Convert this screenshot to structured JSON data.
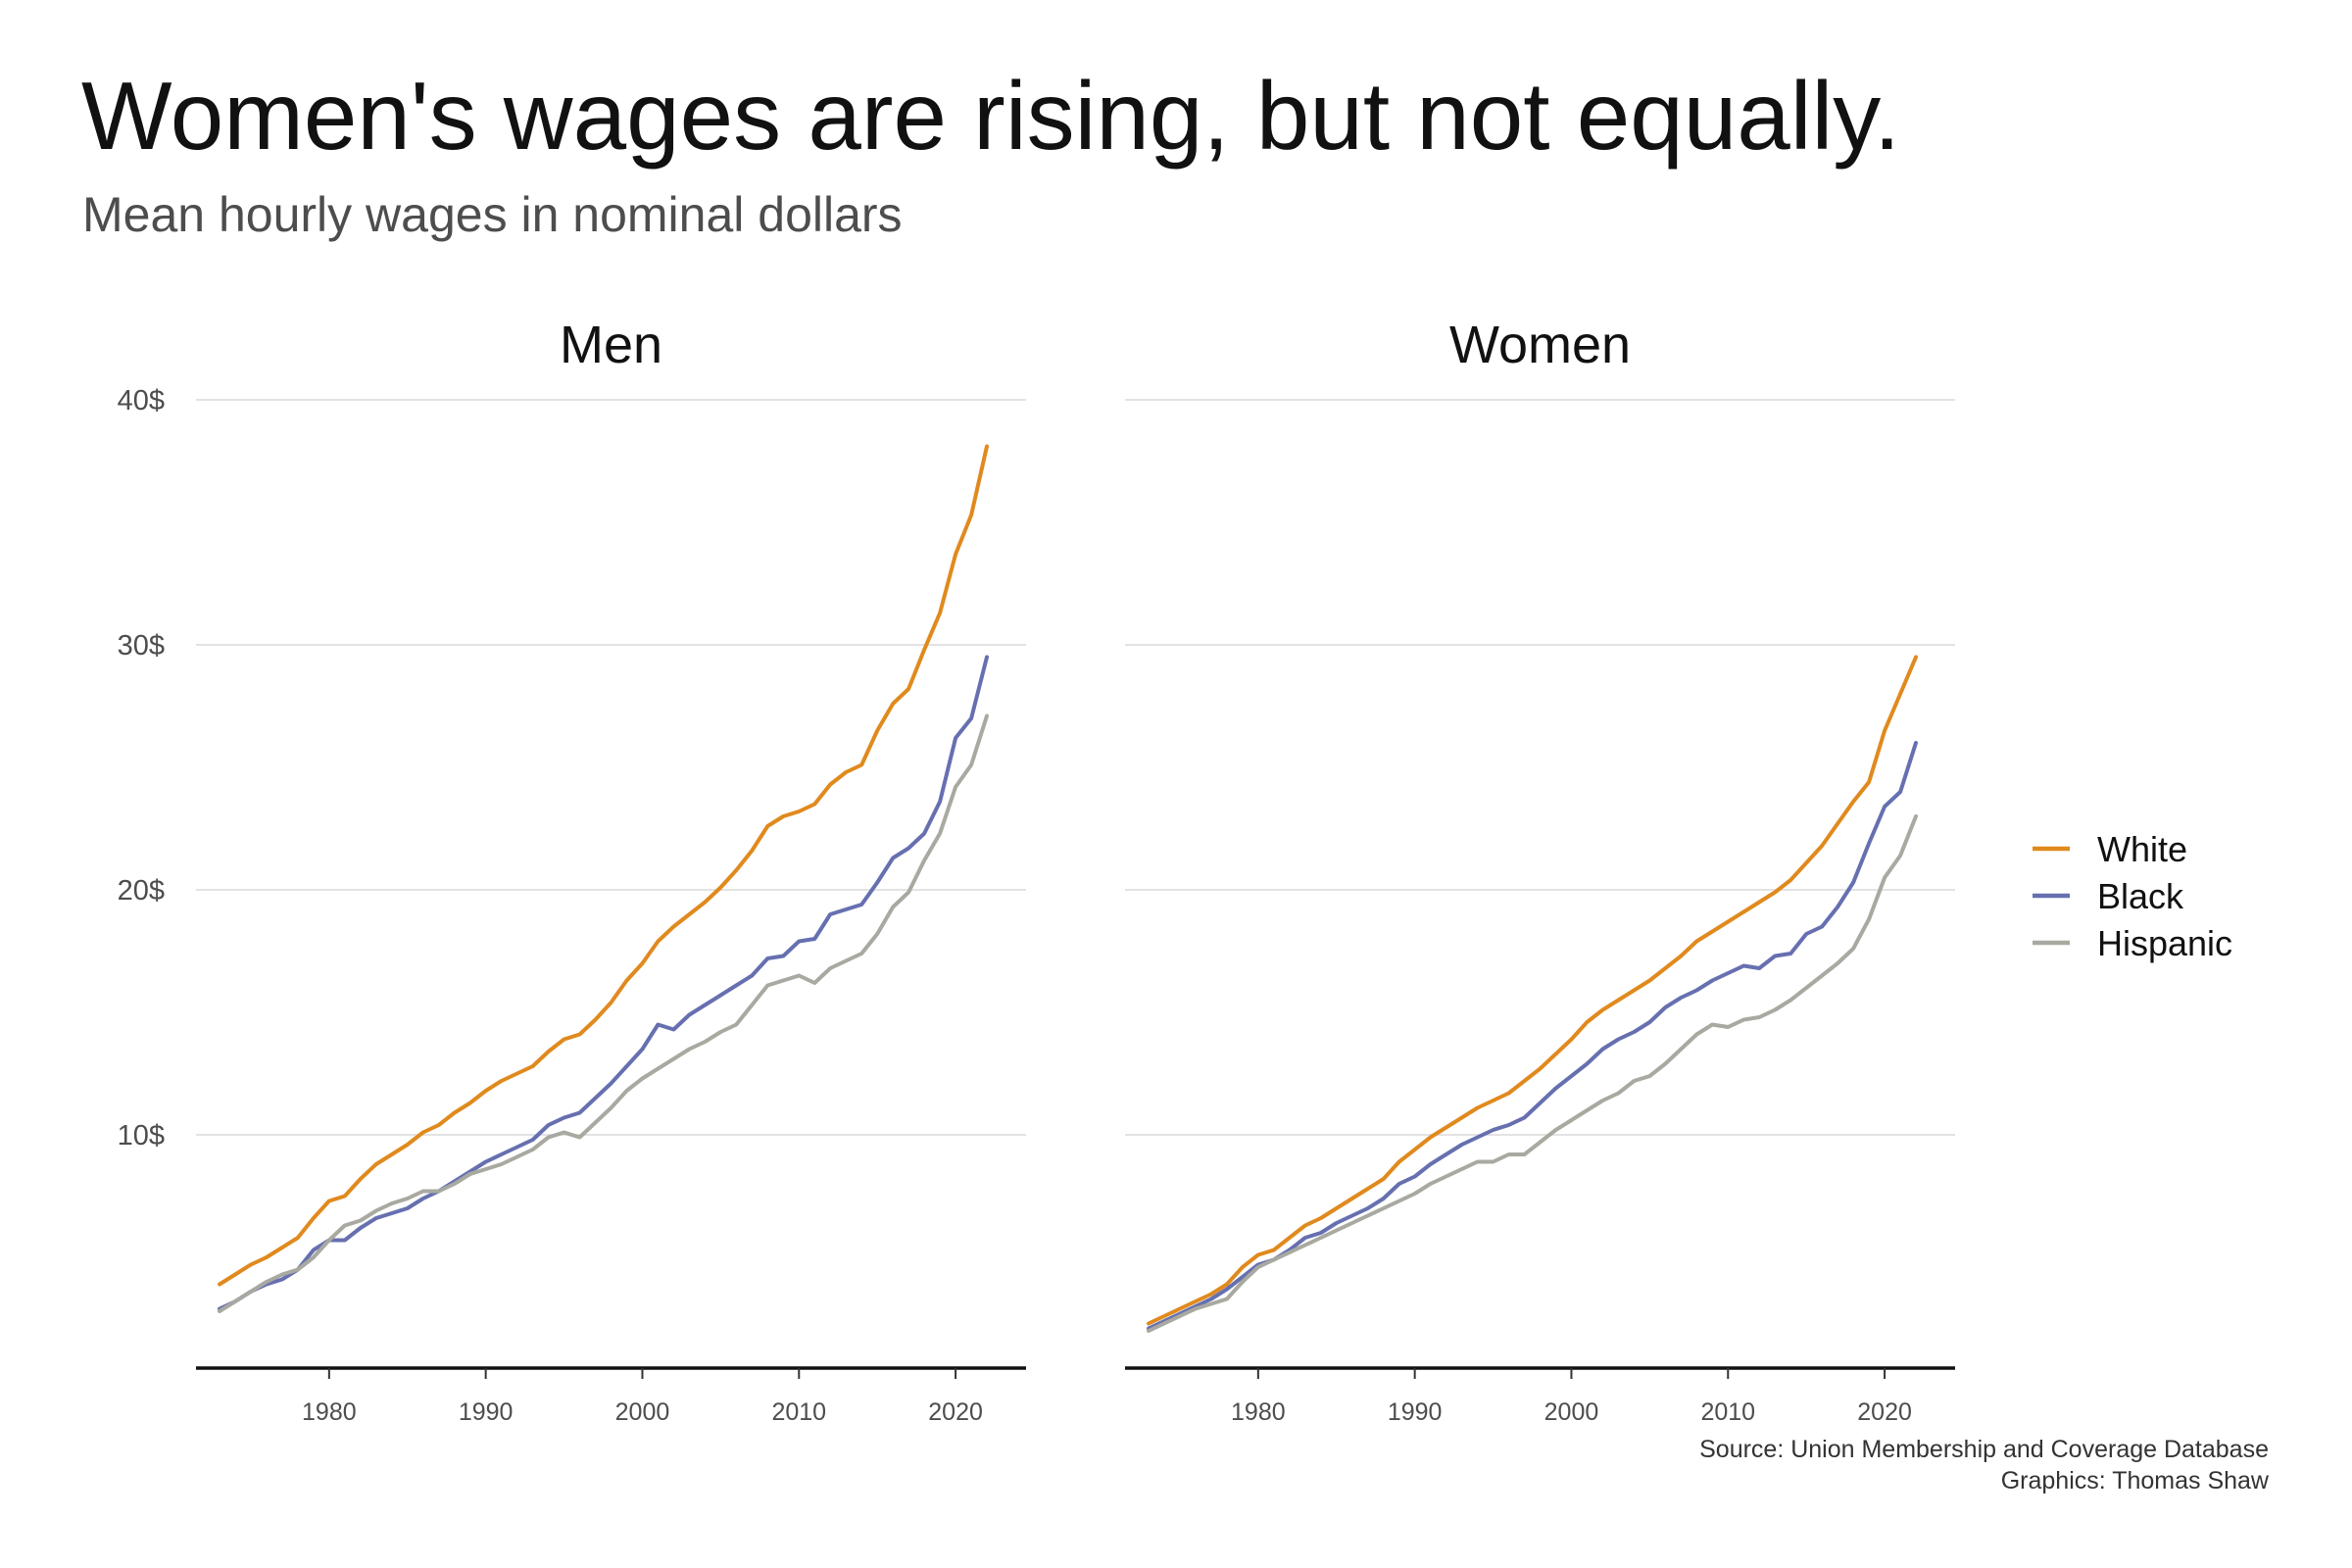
{
  "title": "Women's wages are rising, but not equally.",
  "subtitle": "Mean hourly wages in nominal dollars",
  "caption": {
    "source": "Source: Union Membership and Coverage Database",
    "graphics": "Graphics: Thomas Shaw"
  },
  "colors": {
    "White": "#E08A1E",
    "Black": "#6670B0",
    "Hispanic": "#A8A9A0",
    "grid": "#e3e3e3",
    "axis": "#111111"
  },
  "chart_data": {
    "type": "line",
    "ylim": [
      0,
      40
    ],
    "xlim": [
      1971.5,
      2024.5
    ],
    "y_ticks": [
      10,
      20,
      30,
      40
    ],
    "y_tick_labels": [
      "10$",
      "20$",
      "30$",
      "40$"
    ],
    "x_ticks": [
      1980,
      1990,
      2000,
      2010,
      2020
    ],
    "x_tick_labels": [
      "1980",
      "1990",
      "2000",
      "2010",
      "2020"
    ],
    "grid": "horizontal",
    "legend": [
      "White",
      "Black",
      "Hispanic"
    ],
    "legend_position": "right",
    "x": [
      1973,
      1974,
      1975,
      1976,
      1977,
      1978,
      1979,
      1980,
      1981,
      1982,
      1983,
      1984,
      1985,
      1986,
      1987,
      1988,
      1989,
      1990,
      1991,
      1992,
      1993,
      1994,
      1995,
      1996,
      1997,
      1998,
      1999,
      2000,
      2001,
      2002,
      2003,
      2004,
      2005,
      2006,
      2007,
      2008,
      2009,
      2010,
      2011,
      2012,
      2013,
      2014,
      2015,
      2016,
      2017,
      2018,
      2019,
      2020,
      2021,
      2022
    ],
    "panels": [
      {
        "name": "Men",
        "series": [
          {
            "name": "White",
            "values": [
              3.9,
              4.3,
              4.7,
              5.0,
              5.4,
              5.8,
              6.6,
              7.3,
              7.5,
              8.2,
              8.8,
              9.2,
              9.6,
              10.1,
              10.4,
              10.9,
              11.3,
              11.8,
              12.2,
              12.5,
              12.8,
              13.4,
              13.9,
              14.1,
              14.7,
              15.4,
              16.3,
              17.0,
              17.9,
              18.5,
              19.0,
              19.5,
              20.1,
              20.8,
              21.6,
              22.6,
              23.0,
              23.2,
              23.5,
              24.3,
              24.8,
              25.1,
              26.5,
              27.6,
              28.2,
              29.8,
              31.3,
              33.7,
              35.3,
              38.1
            ]
          },
          {
            "name": "Black",
            "values": [
              2.9,
              3.2,
              3.6,
              3.9,
              4.1,
              4.5,
              5.3,
              5.7,
              5.7,
              6.2,
              6.6,
              6.8,
              7.0,
              7.4,
              7.7,
              8.1,
              8.5,
              8.9,
              9.2,
              9.5,
              9.8,
              10.4,
              10.7,
              10.9,
              11.5,
              12.1,
              12.8,
              13.5,
              14.5,
              14.3,
              14.9,
              15.3,
              15.7,
              16.1,
              16.5,
              17.2,
              17.3,
              17.9,
              18.0,
              19.0,
              19.2,
              19.4,
              20.3,
              21.3,
              21.7,
              22.3,
              23.6,
              26.2,
              27.0,
              29.5
            ]
          },
          {
            "name": "Hispanic",
            "values": [
              2.8,
              3.2,
              3.6,
              4.0,
              4.3,
              4.5,
              5.0,
              5.7,
              6.3,
              6.5,
              6.9,
              7.2,
              7.4,
              7.7,
              7.7,
              8.0,
              8.4,
              8.6,
              8.8,
              9.1,
              9.4,
              9.9,
              10.1,
              9.9,
              10.5,
              11.1,
              11.8,
              12.3,
              12.7,
              13.1,
              13.5,
              13.8,
              14.2,
              14.5,
              15.3,
              16.1,
              16.3,
              16.5,
              16.2,
              16.8,
              17.1,
              17.4,
              18.2,
              19.3,
              19.9,
              21.2,
              22.3,
              24.2,
              25.1,
              27.1
            ]
          }
        ]
      },
      {
        "name": "Women",
        "series": [
          {
            "name": "White",
            "values": [
              2.3,
              2.6,
              2.9,
              3.2,
              3.5,
              3.9,
              4.6,
              5.1,
              5.3,
              5.8,
              6.3,
              6.6,
              7.0,
              7.4,
              7.8,
              8.2,
              8.9,
              9.4,
              9.9,
              10.3,
              10.7,
              11.1,
              11.4,
              11.7,
              12.2,
              12.7,
              13.3,
              13.9,
              14.6,
              15.1,
              15.5,
              15.9,
              16.3,
              16.8,
              17.3,
              17.9,
              18.3,
              18.7,
              19.1,
              19.5,
              19.9,
              20.4,
              21.1,
              21.8,
              22.7,
              23.6,
              24.4,
              26.5,
              28.0,
              29.5
            ]
          },
          {
            "name": "Black",
            "values": [
              2.1,
              2.4,
              2.7,
              3.0,
              3.3,
              3.7,
              4.2,
              4.7,
              4.9,
              5.3,
              5.8,
              6.0,
              6.4,
              6.7,
              7.0,
              7.4,
              8.0,
              8.3,
              8.8,
              9.2,
              9.6,
              9.9,
              10.2,
              10.4,
              10.7,
              11.3,
              11.9,
              12.4,
              12.9,
              13.5,
              13.9,
              14.2,
              14.6,
              15.2,
              15.6,
              15.9,
              16.3,
              16.6,
              16.9,
              16.8,
              17.3,
              17.4,
              18.2,
              18.5,
              19.3,
              20.3,
              21.9,
              23.4,
              24.0,
              26.0
            ]
          },
          {
            "name": "Hispanic",
            "values": [
              2.0,
              2.3,
              2.6,
              2.9,
              3.1,
              3.3,
              4.0,
              4.6,
              4.9,
              5.2,
              5.5,
              5.8,
              6.1,
              6.4,
              6.7,
              7.0,
              7.3,
              7.6,
              8.0,
              8.3,
              8.6,
              8.9,
              8.9,
              9.2,
              9.2,
              9.7,
              10.2,
              10.6,
              11.0,
              11.4,
              11.7,
              12.2,
              12.4,
              12.9,
              13.5,
              14.1,
              14.5,
              14.4,
              14.7,
              14.8,
              15.1,
              15.5,
              16.0,
              16.5,
              17.0,
              17.6,
              18.8,
              20.5,
              21.4,
              23.0
            ]
          }
        ]
      }
    ]
  }
}
